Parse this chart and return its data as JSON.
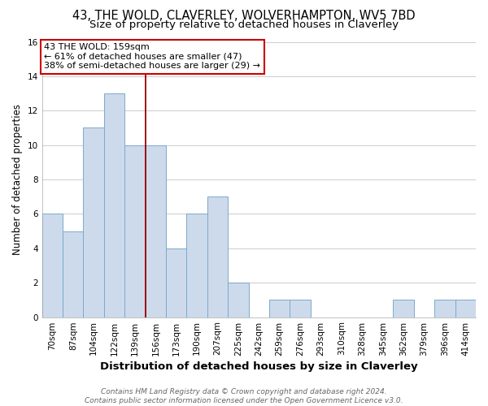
{
  "title": "43, THE WOLD, CLAVERLEY, WOLVERHAMPTON, WV5 7BD",
  "subtitle": "Size of property relative to detached houses in Claverley",
  "xlabel": "Distribution of detached houses by size in Claverley",
  "ylabel": "Number of detached properties",
  "bar_labels": [
    "70sqm",
    "87sqm",
    "104sqm",
    "122sqm",
    "139sqm",
    "156sqm",
    "173sqm",
    "190sqm",
    "207sqm",
    "225sqm",
    "242sqm",
    "259sqm",
    "276sqm",
    "293sqm",
    "310sqm",
    "328sqm",
    "345sqm",
    "362sqm",
    "379sqm",
    "396sqm",
    "414sqm"
  ],
  "bar_values": [
    6,
    5,
    11,
    13,
    10,
    10,
    4,
    6,
    7,
    2,
    0,
    1,
    1,
    0,
    0,
    0,
    0,
    1,
    0,
    1,
    1
  ],
  "bar_color": "#cddaeb",
  "bar_edge_color": "#7aaacb",
  "vline_x": 4.5,
  "vline_color": "#990000",
  "annotation_box_text": "43 THE WOLD: 159sqm\n← 61% of detached houses are smaller (47)\n38% of semi-detached houses are larger (29) →",
  "annotation_box_color": "#ffffff",
  "annotation_box_edge_color": "#cc0000",
  "ylim": [
    0,
    16
  ],
  "yticks": [
    0,
    2,
    4,
    6,
    8,
    10,
    12,
    14,
    16
  ],
  "grid_color": "#cccccc",
  "plot_bg_color": "#ffffff",
  "fig_bg_color": "#ffffff",
  "footer_line1": "Contains HM Land Registry data © Crown copyright and database right 2024.",
  "footer_line2": "Contains public sector information licensed under the Open Government Licence v3.0.",
  "title_fontsize": 10.5,
  "subtitle_fontsize": 9.5,
  "xlabel_fontsize": 9.5,
  "ylabel_fontsize": 8.5,
  "tick_fontsize": 7.5,
  "annotation_fontsize": 8,
  "footer_fontsize": 6.5
}
